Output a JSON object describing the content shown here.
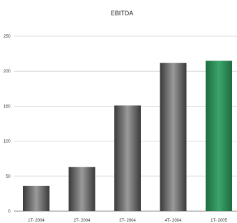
{
  "chart_data": {
    "type": "bar",
    "title": "EBITDA",
    "categories": [
      "1T- 2004",
      "2T- 2004",
      "3T- 2004",
      "4T- 2004",
      "1T- 2005"
    ],
    "values": [
      36,
      63,
      151,
      212,
      215
    ],
    "ylim": [
      0,
      250
    ],
    "yticks": [
      0,
      50,
      100,
      150,
      200,
      250
    ],
    "grid": true,
    "xlabel": "",
    "ylabel": "",
    "colors": {
      "bar_gray_dark": "#3a3a3a",
      "bar_gray_light": "#9a9a9a",
      "bar_green_dark": "#1f6b3f",
      "bar_green_light": "#3aa56a",
      "highlight_category": "1T- 2005"
    }
  }
}
